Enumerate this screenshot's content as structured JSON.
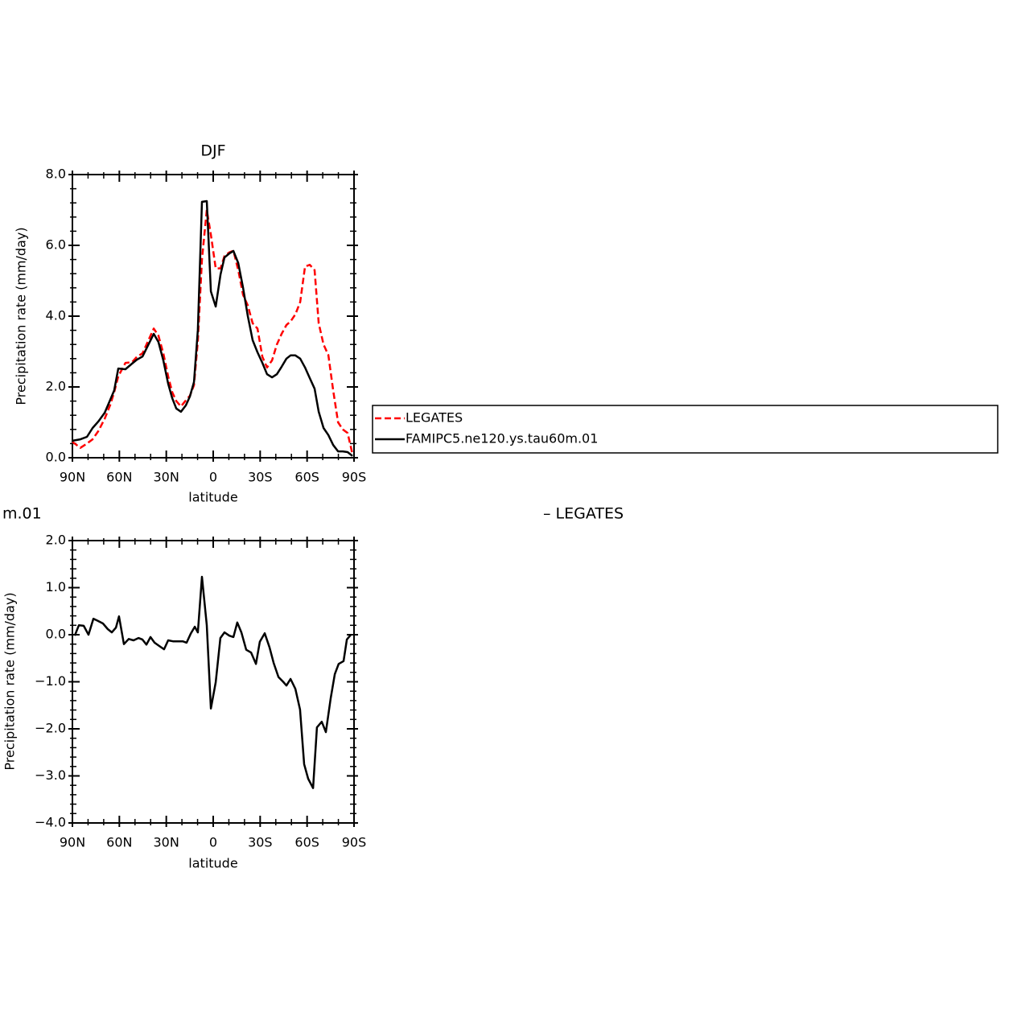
{
  "chart_data": [
    {
      "type": "line",
      "title": "DJF",
      "xlabel": "latitude",
      "ylabel": "Precipitation rate (mm/day)",
      "xlim": [
        90,
        -90
      ],
      "xticks": [
        {
          "value": 90,
          "label": "90N"
        },
        {
          "value": 60,
          "label": "60N"
        },
        {
          "value": 30,
          "label": "30N"
        },
        0,
        {
          "value": -30,
          "label": "30S"
        },
        {
          "value": -60,
          "label": "60S"
        },
        {
          "value": -90,
          "label": "90S"
        }
      ],
      "ylim": [
        0,
        8
      ],
      "yticks": [
        {
          "value": 0,
          "label": "0.0"
        },
        {
          "value": 2,
          "label": "2.0"
        },
        {
          "value": 4,
          "label": "4.0"
        },
        {
          "value": 6,
          "label": "6.0"
        },
        {
          "value": 8,
          "label": "8.0"
        }
      ],
      "legend": "outside-right",
      "x": [
        90,
        84.9,
        80.7,
        77.1,
        73.5,
        69.4,
        65.8,
        63.3,
        60.7,
        56.1,
        51.9,
        48.8,
        45.2,
        41.6,
        38.0,
        35.0,
        31.9,
        28.8,
        26.2,
        23.6,
        20.6,
        17.5,
        14.9,
        12.3,
        9.8,
        7.2,
        4.1,
        1.5,
        -1.6,
        -4.7,
        -7.2,
        -10.3,
        -12.9,
        -16.0,
        -19.1,
        -22.1,
        -25.2,
        -28.3,
        -31.4,
        -34.4,
        -37.6,
        -40.7,
        -43.7,
        -46.8,
        -49.4,
        -52.5,
        -55.6,
        -58.7,
        -61.7,
        -64.8,
        -67.4,
        -70.5,
        -73.6,
        -76.7,
        -79.8,
        -82.8,
        -85.9,
        -89.0
      ],
      "series": [
        {
          "name": "LEGATES",
          "color": "#ff0000",
          "dash": true,
          "values": [
            0.45,
            0.28,
            0.4,
            0.52,
            0.75,
            1.1,
            1.5,
            1.85,
            2.3,
            2.68,
            2.7,
            2.85,
            2.95,
            3.3,
            3.65,
            3.45,
            2.95,
            2.3,
            1.85,
            1.6,
            1.45,
            1.62,
            1.75,
            2.05,
            3.3,
            5.6,
            7.0,
            6.3,
            5.35,
            5.35,
            5.7,
            5.8,
            5.85,
            5.3,
            4.6,
            4.3,
            3.8,
            3.65,
            2.85,
            2.55,
            2.75,
            3.2,
            3.5,
            3.75,
            3.85,
            4.05,
            4.4,
            5.4,
            5.45,
            5.3,
            3.8,
            3.2,
            2.9,
            1.9,
            1.0,
            0.8,
            0.7,
            0.1
          ]
        },
        {
          "name": "FAMIPC5.ne120.ys.tau60m.01",
          "color": "#000000",
          "dash": false,
          "values": [
            0.48,
            0.52,
            0.59,
            0.84,
            1.02,
            1.27,
            1.64,
            1.9,
            2.52,
            2.5,
            2.66,
            2.77,
            2.86,
            3.18,
            3.5,
            3.27,
            2.75,
            2.09,
            1.68,
            1.39,
            1.3,
            1.48,
            1.73,
            2.14,
            3.61,
            7.23,
            7.25,
            4.7,
            4.27,
            5.18,
            5.66,
            5.77,
            5.84,
            5.5,
            4.8,
            4.0,
            3.32,
            2.98,
            2.68,
            2.36,
            2.27,
            2.36,
            2.57,
            2.8,
            2.89,
            2.89,
            2.8,
            2.55,
            2.25,
            1.95,
            1.3,
            0.84,
            0.64,
            0.36,
            0.18,
            0.18,
            0.16,
            0.05
          ]
        }
      ]
    },
    {
      "type": "line",
      "title_left": "m.01",
      "title_right": "– LEGATES",
      "xlabel": "latitude",
      "ylabel": "Precipitation rate (mm/day)",
      "xlim": [
        90,
        -90
      ],
      "xticks": [
        {
          "value": 90,
          "label": "90N"
        },
        {
          "value": 60,
          "label": "60N"
        },
        {
          "value": 30,
          "label": "30N"
        },
        0,
        {
          "value": -30,
          "label": "30S"
        },
        {
          "value": -60,
          "label": "60S"
        },
        {
          "value": -90,
          "label": "90S"
        }
      ],
      "ylim": [
        -4,
        2
      ],
      "yticks": [
        {
          "value": -4,
          "label": "−4.0"
        },
        {
          "value": -3,
          "label": "−3.0"
        },
        {
          "value": -2,
          "label": "−2.0"
        },
        {
          "value": -1,
          "label": "−1.0"
        },
        {
          "value": 0,
          "label": "0.0"
        },
        {
          "value": 1,
          "label": "1.0"
        },
        {
          "value": 2,
          "label": "2.0"
        }
      ],
      "x": [
        88.5,
        85.9,
        82.8,
        79.7,
        76.6,
        73.5,
        70.5,
        67.4,
        64.8,
        62.2,
        60.2,
        57.1,
        54.0,
        50.9,
        47.8,
        45.3,
        42.7,
        40.1,
        37.5,
        34.5,
        31.4,
        28.8,
        25.7,
        22.6,
        19.5,
        17.0,
        14.4,
        11.8,
        9.8,
        7.2,
        4.1,
        1.5,
        -1.6,
        -4.6,
        -7.2,
        -10.3,
        -12.9,
        -15.4,
        -18.0,
        -21.1,
        -24.2,
        -27.3,
        -29.8,
        -32.9,
        -36.0,
        -38.6,
        -41.7,
        -44.7,
        -46.8,
        -49.4,
        -52.5,
        -55.5,
        -58.1,
        -60.7,
        -63.8,
        -66.3,
        -69.4,
        -72.0,
        -75.1,
        -77.7,
        -80.2,
        -83.3,
        -85.4,
        -88.0
      ],
      "series": [
        {
          "color": "#000000",
          "dash": false,
          "values": [
            -0.02,
            0.2,
            0.19,
            0.0,
            0.34,
            0.29,
            0.24,
            0.12,
            0.05,
            0.15,
            0.39,
            -0.2,
            -0.09,
            -0.12,
            -0.07,
            -0.1,
            -0.21,
            -0.05,
            -0.17,
            -0.24,
            -0.31,
            -0.12,
            -0.14,
            -0.14,
            -0.14,
            -0.17,
            0.02,
            0.17,
            0.05,
            1.23,
            0.2,
            -1.57,
            -1.01,
            -0.07,
            0.05,
            -0.02,
            -0.05,
            0.26,
            0.05,
            -0.32,
            -0.38,
            -0.62,
            -0.15,
            0.03,
            -0.27,
            -0.6,
            -0.9,
            -1.0,
            -1.08,
            -0.94,
            -1.15,
            -1.59,
            -2.75,
            -3.06,
            -3.26,
            -1.97,
            -1.85,
            -2.07,
            -1.35,
            -0.84,
            -0.62,
            -0.56,
            -0.1,
            0.0
          ]
        }
      ]
    }
  ]
}
